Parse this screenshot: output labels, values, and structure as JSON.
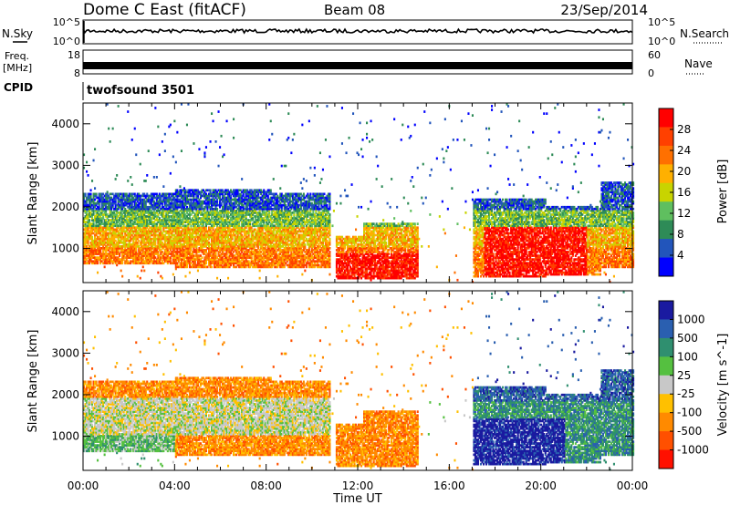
{
  "header": {
    "title": "Dome C East (fitACF)",
    "beam": "Beam 08",
    "date": "23/Sep/2014"
  },
  "top_panels": {
    "nsky_label": "N.Sky",
    "nsky_ticks": [
      "10^5",
      "10^0"
    ],
    "nsearch_label": "N.Search",
    "nsearch_ticks": [
      "10^5",
      "10^0"
    ],
    "freq_label": "Freq.",
    "freq_unit": "[MHz]",
    "freq_ticks": [
      "18",
      "8"
    ],
    "nave_label": "Nave",
    "nave_ticks": [
      "60",
      "0"
    ],
    "cpid_label": "CPID",
    "cpid_value": "twofsound 3501"
  },
  "colors": {
    "power": [
      "#0000ff",
      "#2255bb",
      "#2e8b57",
      "#5fbf5f",
      "#c8d400",
      "#ffb000",
      "#ff7000",
      "#ff4000",
      "#ff0000"
    ],
    "velocity": [
      "#1a1aa0",
      "#2a5fb0",
      "#2f8f6f",
      "#55c040",
      "#c8c8c8",
      "#ffc000",
      "#ff8a00",
      "#ff5000",
      "#ff1000"
    ]
  },
  "chart_data": [
    {
      "type": "heatmap",
      "name": "power",
      "ylabel": "Slant Range [km]",
      "ylim": [
        180,
        4500
      ],
      "yticks": [
        "1000",
        "2000",
        "3000",
        "4000"
      ],
      "xlim": [
        0,
        24
      ],
      "colorbar_label": "Power [dB]",
      "colorbar_ticks": [
        "4",
        "8",
        "12",
        "16",
        "20",
        "24",
        "28"
      ],
      "grid": false
    },
    {
      "type": "heatmap",
      "name": "velocity",
      "ylabel": "Slant Range [km]",
      "ylim": [
        180,
        4500
      ],
      "yticks": [
        "1000",
        "2000",
        "3000",
        "4000"
      ],
      "xlim": [
        0,
        24
      ],
      "colorbar_label": "Velocity [m s^-1]",
      "colorbar_ticks": [
        "1000",
        "500",
        "100",
        "25",
        "-25",
        "-100",
        "-500",
        "-1000"
      ],
      "grid": false
    }
  ],
  "xaxis": {
    "label": "Time UT",
    "ticks": [
      "00:00",
      "04:00",
      "08:00",
      "12:00",
      "16:00",
      "20:00",
      "00:00"
    ]
  }
}
